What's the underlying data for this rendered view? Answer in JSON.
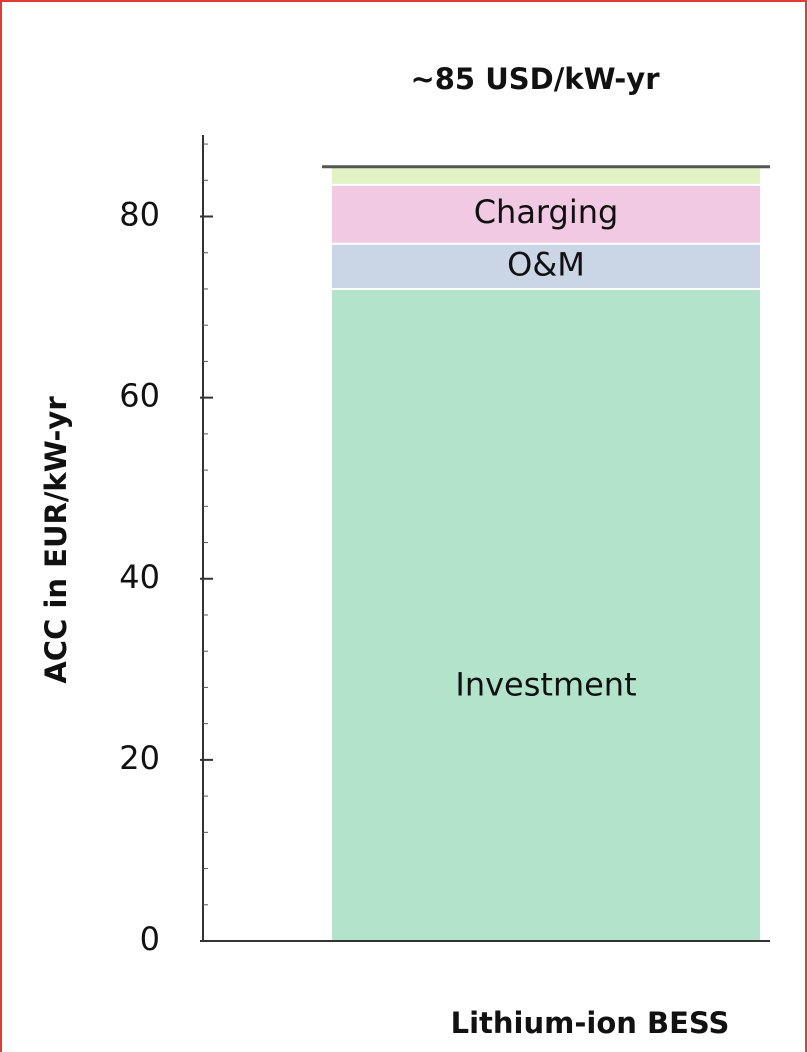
{
  "chart_data": {
    "type": "stacked_bar",
    "title": "~85 USD/kW-yr",
    "y_label": "ACC in EUR/kW-yr",
    "categories": [
      "Lithium-ion BESS"
    ],
    "series": [
      {
        "name": "Investment",
        "color": "#b3e3cb",
        "values": [
          72
        ]
      },
      {
        "name": "O&M",
        "color": "#cad5e6",
        "values": [
          5
        ]
      },
      {
        "name": "Charging",
        "color": "#f2c9e3",
        "values": [
          6.5
        ]
      },
      {
        "color": "#e3f2c4",
        "values": [
          2
        ]
      }
    ],
    "ylim": [
      0,
      89
    ],
    "yticks": [
      0,
      20,
      40,
      60,
      80
    ],
    "minor_yticks": [
      4,
      8,
      12,
      16,
      24,
      28,
      32,
      36,
      44,
      48,
      52,
      56,
      64,
      68,
      72,
      76,
      84,
      88
    ]
  }
}
